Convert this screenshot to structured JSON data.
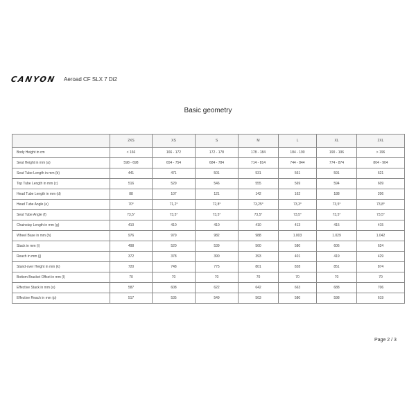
{
  "header": {
    "logo": "CANYON",
    "model": "Aeroad CF SLX 7 Di2"
  },
  "title": "Basic geometry",
  "table": {
    "columns": [
      "",
      "2XS",
      "XS",
      "S",
      "M",
      "L",
      "XL",
      "2XL"
    ],
    "rows": [
      [
        "Body Height in cm",
        "< 166",
        "166 - 172",
        "172 - 178",
        "178 - 184",
        "184 - 190",
        "190 - 196",
        "> 196"
      ],
      [
        "Seat Height in mm (a)",
        "598 - 698",
        "654 - 754",
        "684 - 784",
        "714 - 814",
        "744 - 844",
        "774 - 874",
        "804 - 904"
      ],
      [
        "Seat Tube Length in mm (b)",
        "441",
        "471",
        "501",
        "531",
        "561",
        "591",
        "621"
      ],
      [
        "Top Tube Length in mm (c)",
        "516",
        "529",
        "546",
        "555",
        "569",
        "594",
        "609"
      ],
      [
        "Head Tube Length in mm (d)",
        "88",
        "107",
        "121",
        "142",
        "162",
        "188",
        "206"
      ],
      [
        "Head Tube Angle (e)",
        "70°",
        "71,2°",
        "72,8°",
        "73,25°",
        "73,3°",
        "73,5°",
        "73,8°"
      ],
      [
        "Seat Tube Angle (f)",
        "73,5°",
        "73,5°",
        "73,5°",
        "73,5°",
        "73,5°",
        "73,5°",
        "73,5°"
      ],
      [
        "Chainstay Length in mm (g)",
        "410",
        "410",
        "410",
        "410",
        "413",
        "415",
        "415"
      ],
      [
        "Wheel Base in mm (h)",
        "976",
        "979",
        "982",
        "988",
        "1.003",
        "1.029",
        "1.042"
      ],
      [
        "Stack in mm (i)",
        "498",
        "520",
        "539",
        "560",
        "580",
        "606",
        "624"
      ],
      [
        "Reach in mm (j)",
        "372",
        "378",
        "390",
        "393",
        "401",
        "419",
        "429"
      ],
      [
        "Stand-over Height in mm (k)",
        "720",
        "748",
        "775",
        "801",
        "828",
        "851",
        "874"
      ],
      [
        "Bottom Bracket Offset in mm (l)",
        "70",
        "70",
        "70",
        "70",
        "70",
        "70",
        "70"
      ],
      [
        "Effective Stack in mm (o)",
        "587",
        "608",
        "622",
        "642",
        "663",
        "688",
        "706"
      ],
      [
        "Effective Reach in mm (p)",
        "517",
        "535",
        "549",
        "563",
        "580",
        "598",
        "619"
      ]
    ]
  },
  "footer": {
    "page": "Page 2 / 3"
  }
}
